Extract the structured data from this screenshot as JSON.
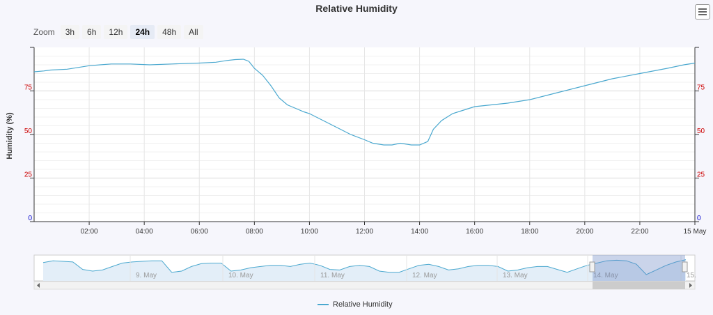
{
  "chart_data": {
    "type": "line",
    "title": "Relative Humidity",
    "ylabel": "Humidity (%)",
    "ylim": [
      0,
      100
    ],
    "yticks": [
      0,
      25,
      50,
      75
    ],
    "xlim": [
      0.0,
      24.0
    ],
    "xtick_values": [
      2,
      4,
      6,
      8,
      10,
      12,
      14,
      16,
      18,
      20,
      22,
      24
    ],
    "xtick_labels": [
      "02:00",
      "04:00",
      "06:00",
      "08:00",
      "10:00",
      "12:00",
      "14:00",
      "16:00",
      "18:00",
      "20:00",
      "22:00",
      "15 May"
    ],
    "grid": true,
    "legend_position": "bottom",
    "series": [
      {
        "name": "Relative Humidity",
        "color": "#4aa8cf",
        "x": [
          0.0,
          0.35,
          0.6,
          1.2,
          1.6,
          2.0,
          2.4,
          2.8,
          3.5,
          4.2,
          5.0,
          6.0,
          6.6,
          7.0,
          7.3,
          7.6,
          7.8,
          8.0,
          8.3,
          8.6,
          8.9,
          9.2,
          9.5,
          9.8,
          10.0,
          10.5,
          11.0,
          11.5,
          12.0,
          12.3,
          12.7,
          13.0,
          13.3,
          13.7,
          14.0,
          14.3,
          14.5,
          14.8,
          15.2,
          15.6,
          16.0,
          16.6,
          17.2,
          18.0,
          19.0,
          20.0,
          21.0,
          22.0,
          23.0,
          23.6,
          24.0
        ],
        "y": [
          86,
          86.5,
          87,
          87.5,
          88.5,
          89.5,
          90,
          90.5,
          90.5,
          90,
          90.5,
          91,
          91.5,
          92.5,
          93,
          93.2,
          92,
          88,
          84,
          78,
          71,
          67,
          65,
          63,
          62,
          58,
          54,
          50,
          47,
          45,
          44,
          44,
          45,
          44,
          44,
          46,
          53,
          58,
          62,
          64,
          66,
          67,
          68,
          70,
          74,
          78,
          82,
          85,
          88,
          90,
          91
        ]
      }
    ],
    "navigator": {
      "labels": [
        "9. May",
        "10. May",
        "11. May",
        "12. May",
        "13. May",
        "14. May",
        "15."
      ],
      "y": [
        87,
        90,
        89,
        88,
        75,
        72,
        74,
        80,
        86,
        88,
        89,
        90,
        90,
        70,
        72,
        80,
        85,
        86,
        86,
        72,
        74,
        78,
        80,
        82,
        82,
        80,
        84,
        86,
        82,
        75,
        74,
        80,
        82,
        80,
        72,
        70,
        70,
        76,
        82,
        84,
        80,
        74,
        76,
        80,
        82,
        82,
        80,
        72,
        74,
        78,
        80,
        80,
        75,
        70,
        76,
        82,
        86,
        90,
        91,
        90,
        84,
        66,
        74,
        82,
        88,
        92
      ]
    },
    "zoom": {
      "label": "Zoom",
      "buttons": [
        "3h",
        "6h",
        "12h",
        "24h",
        "48h",
        "All"
      ],
      "selected": "24h"
    }
  }
}
